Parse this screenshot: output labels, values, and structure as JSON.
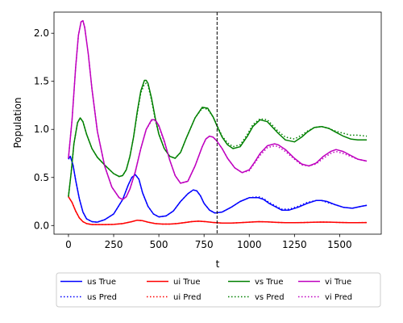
{
  "chart_data": {
    "type": "line",
    "xlabel": "t",
    "ylabel": "Population",
    "xlim": [
      -80,
      1730
    ],
    "ylim": [
      -0.09,
      2.22
    ],
    "xticks": [
      0,
      250,
      500,
      750,
      1000,
      1250,
      1500
    ],
    "yticks": [
      0.0,
      0.5,
      1.0,
      1.5,
      2.0
    ],
    "vline_x": 822,
    "legend_position": "below",
    "series": [
      {
        "name": "us True",
        "color": "#0000ff",
        "dash": false,
        "x": [
          0,
          10,
          25,
          40,
          60,
          80,
          100,
          130,
          160,
          200,
          250,
          300,
          330,
          350,
          370,
          390,
          410,
          440,
          470,
          500,
          540,
          580,
          620,
          660,
          690,
          710,
          730,
          750,
          780,
          810,
          850,
          900,
          950,
          1000,
          1050,
          1080,
          1110,
          1140,
          1180,
          1220,
          1270,
          1320,
          1370,
          1400,
          1430,
          1470,
          1520,
          1570,
          1620,
          1650
        ],
        "y": [
          0.69,
          0.72,
          0.63,
          0.47,
          0.28,
          0.14,
          0.07,
          0.04,
          0.035,
          0.06,
          0.12,
          0.27,
          0.42,
          0.5,
          0.53,
          0.48,
          0.34,
          0.2,
          0.12,
          0.09,
          0.1,
          0.15,
          0.25,
          0.33,
          0.37,
          0.36,
          0.31,
          0.23,
          0.16,
          0.13,
          0.14,
          0.19,
          0.25,
          0.29,
          0.29,
          0.27,
          0.23,
          0.2,
          0.16,
          0.16,
          0.19,
          0.23,
          0.26,
          0.26,
          0.25,
          0.22,
          0.19,
          0.18,
          0.2,
          0.21
        ]
      },
      {
        "name": "us Pred",
        "color": "#0000ff",
        "dash": true,
        "x": [
          0,
          10,
          25,
          40,
          60,
          80,
          100,
          130,
          160,
          200,
          250,
          300,
          330,
          350,
          370,
          390,
          410,
          440,
          470,
          500,
          540,
          580,
          620,
          660,
          690,
          710,
          730,
          750,
          780,
          810,
          850,
          900,
          950,
          1000,
          1050,
          1080,
          1110,
          1140,
          1180,
          1220,
          1270,
          1320,
          1370,
          1400,
          1430,
          1470,
          1520,
          1570,
          1620,
          1650
        ],
        "y": [
          0.69,
          0.72,
          0.63,
          0.47,
          0.28,
          0.14,
          0.07,
          0.04,
          0.035,
          0.06,
          0.12,
          0.27,
          0.42,
          0.5,
          0.53,
          0.48,
          0.34,
          0.2,
          0.12,
          0.09,
          0.1,
          0.15,
          0.25,
          0.33,
          0.37,
          0.36,
          0.31,
          0.23,
          0.16,
          0.13,
          0.14,
          0.19,
          0.25,
          0.29,
          0.3,
          0.28,
          0.24,
          0.21,
          0.17,
          0.17,
          0.2,
          0.24,
          0.26,
          0.26,
          0.24,
          0.22,
          0.19,
          0.18,
          0.2,
          0.21
        ]
      },
      {
        "name": "ui True",
        "color": "#ff0000",
        "dash": false,
        "x": [
          0,
          20,
          40,
          60,
          80,
          100,
          130,
          160,
          200,
          250,
          300,
          350,
          380,
          410,
          440,
          480,
          520,
          560,
          600,
          640,
          680,
          720,
          760,
          800,
          850,
          900,
          950,
          1000,
          1050,
          1100,
          1150,
          1200,
          1250,
          1300,
          1350,
          1400,
          1450,
          1500,
          1550,
          1600,
          1650
        ],
        "y": [
          0.3,
          0.24,
          0.15,
          0.08,
          0.04,
          0.02,
          0.01,
          0.01,
          0.01,
          0.012,
          0.02,
          0.04,
          0.055,
          0.05,
          0.035,
          0.02,
          0.015,
          0.015,
          0.02,
          0.03,
          0.04,
          0.045,
          0.04,
          0.032,
          0.025,
          0.025,
          0.03,
          0.035,
          0.04,
          0.038,
          0.033,
          0.029,
          0.029,
          0.031,
          0.034,
          0.036,
          0.035,
          0.032,
          0.03,
          0.03,
          0.031
        ]
      },
      {
        "name": "ui Pred",
        "color": "#ff0000",
        "dash": true,
        "x": [
          0,
          20,
          40,
          60,
          80,
          100,
          130,
          160,
          200,
          250,
          300,
          350,
          380,
          410,
          440,
          480,
          520,
          560,
          600,
          640,
          680,
          720,
          760,
          800,
          850,
          900,
          950,
          1000,
          1050,
          1100,
          1150,
          1200,
          1250,
          1300,
          1350,
          1400,
          1450,
          1500,
          1550,
          1600,
          1650
        ],
        "y": [
          0.3,
          0.24,
          0.15,
          0.08,
          0.04,
          0.02,
          0.01,
          0.01,
          0.01,
          0.012,
          0.02,
          0.04,
          0.055,
          0.05,
          0.035,
          0.02,
          0.015,
          0.015,
          0.02,
          0.03,
          0.04,
          0.045,
          0.04,
          0.032,
          0.025,
          0.025,
          0.03,
          0.035,
          0.04,
          0.038,
          0.033,
          0.029,
          0.029,
          0.031,
          0.034,
          0.036,
          0.035,
          0.032,
          0.03,
          0.03,
          0.031
        ]
      },
      {
        "name": "vs True",
        "color": "#008000",
        "dash": false,
        "x": [
          0,
          15,
          30,
          50,
          65,
          80,
          100,
          130,
          160,
          200,
          250,
          280,
          300,
          320,
          340,
          360,
          380,
          400,
          420,
          430,
          440,
          460,
          480,
          500,
          530,
          560,
          590,
          620,
          650,
          700,
          740,
          770,
          800,
          830,
          850,
          880,
          910,
          950,
          990,
          1020,
          1060,
          1100,
          1130,
          1160,
          1200,
          1250,
          1290,
          1320,
          1360,
          1400,
          1440,
          1480,
          1520,
          1560,
          1600,
          1650
        ],
        "y": [
          0.3,
          0.55,
          0.85,
          1.07,
          1.12,
          1.08,
          0.95,
          0.8,
          0.71,
          0.63,
          0.54,
          0.51,
          0.52,
          0.58,
          0.72,
          0.92,
          1.18,
          1.4,
          1.51,
          1.51,
          1.48,
          1.32,
          1.12,
          0.95,
          0.8,
          0.72,
          0.7,
          0.76,
          0.9,
          1.12,
          1.23,
          1.22,
          1.13,
          1.0,
          0.92,
          0.84,
          0.8,
          0.82,
          0.93,
          1.03,
          1.1,
          1.08,
          1.02,
          0.96,
          0.89,
          0.87,
          0.92,
          0.97,
          1.02,
          1.03,
          1.01,
          0.97,
          0.93,
          0.9,
          0.89,
          0.89
        ]
      },
      {
        "name": "vs Pred",
        "color": "#008000",
        "dash": true,
        "x": [
          0,
          15,
          30,
          50,
          65,
          80,
          100,
          130,
          160,
          200,
          250,
          280,
          300,
          320,
          340,
          360,
          380,
          400,
          420,
          430,
          440,
          460,
          480,
          500,
          530,
          560,
          590,
          620,
          650,
          700,
          740,
          770,
          800,
          830,
          850,
          880,
          910,
          950,
          990,
          1020,
          1060,
          1100,
          1130,
          1160,
          1200,
          1250,
          1290,
          1320,
          1360,
          1400,
          1440,
          1480,
          1520,
          1560,
          1600,
          1650
        ],
        "y": [
          0.3,
          0.55,
          0.85,
          1.07,
          1.12,
          1.08,
          0.95,
          0.8,
          0.71,
          0.63,
          0.54,
          0.51,
          0.52,
          0.58,
          0.72,
          0.92,
          1.16,
          1.38,
          1.47,
          1.48,
          1.46,
          1.3,
          1.1,
          0.95,
          0.8,
          0.72,
          0.7,
          0.76,
          0.9,
          1.12,
          1.22,
          1.21,
          1.13,
          1.01,
          0.93,
          0.86,
          0.82,
          0.84,
          0.95,
          1.05,
          1.11,
          1.1,
          1.04,
          0.98,
          0.92,
          0.9,
          0.94,
          0.98,
          1.02,
          1.03,
          1.01,
          0.98,
          0.96,
          0.94,
          0.94,
          0.93
        ]
      },
      {
        "name": "vi True",
        "color": "#bf00bf",
        "dash": false,
        "x": [
          0,
          20,
          40,
          55,
          70,
          80,
          90,
          110,
          130,
          160,
          200,
          240,
          280,
          300,
          320,
          340,
          370,
          400,
          430,
          460,
          480,
          500,
          530,
          560,
          590,
          620,
          660,
          700,
          740,
          760,
          780,
          800,
          820,
          850,
          880,
          920,
          960,
          1000,
          1030,
          1060,
          1100,
          1140,
          1160,
          1200,
          1250,
          1290,
          1330,
          1370,
          1410,
          1450,
          1480,
          1520,
          1560,
          1600,
          1650
        ],
        "y": [
          0.7,
          1.1,
          1.65,
          1.98,
          2.12,
          2.13,
          2.06,
          1.78,
          1.42,
          0.98,
          0.62,
          0.4,
          0.29,
          0.27,
          0.3,
          0.38,
          0.56,
          0.8,
          1.0,
          1.1,
          1.1,
          1.04,
          0.88,
          0.68,
          0.52,
          0.44,
          0.46,
          0.62,
          0.82,
          0.9,
          0.93,
          0.92,
          0.88,
          0.8,
          0.7,
          0.6,
          0.55,
          0.58,
          0.66,
          0.75,
          0.83,
          0.85,
          0.84,
          0.79,
          0.7,
          0.64,
          0.62,
          0.65,
          0.72,
          0.77,
          0.79,
          0.77,
          0.73,
          0.69,
          0.67
        ]
      },
      {
        "name": "vi Pred",
        "color": "#bf00bf",
        "dash": true,
        "x": [
          0,
          20,
          40,
          55,
          70,
          80,
          90,
          110,
          130,
          160,
          200,
          240,
          280,
          300,
          320,
          340,
          370,
          400,
          430,
          460,
          480,
          500,
          530,
          560,
          590,
          620,
          660,
          700,
          740,
          760,
          780,
          800,
          820,
          850,
          880,
          920,
          960,
          1000,
          1030,
          1060,
          1100,
          1140,
          1160,
          1200,
          1250,
          1290,
          1330,
          1370,
          1410,
          1450,
          1480,
          1520,
          1560,
          1600,
          1650
        ],
        "y": [
          0.7,
          1.1,
          1.65,
          1.98,
          2.12,
          2.13,
          2.06,
          1.78,
          1.42,
          0.98,
          0.62,
          0.4,
          0.29,
          0.27,
          0.3,
          0.38,
          0.56,
          0.8,
          1.0,
          1.09,
          1.09,
          1.03,
          0.87,
          0.68,
          0.52,
          0.44,
          0.46,
          0.62,
          0.82,
          0.9,
          0.93,
          0.92,
          0.88,
          0.8,
          0.7,
          0.6,
          0.55,
          0.57,
          0.65,
          0.73,
          0.81,
          0.83,
          0.82,
          0.77,
          0.69,
          0.63,
          0.62,
          0.64,
          0.7,
          0.75,
          0.77,
          0.75,
          0.72,
          0.69,
          0.67
        ]
      }
    ]
  }
}
